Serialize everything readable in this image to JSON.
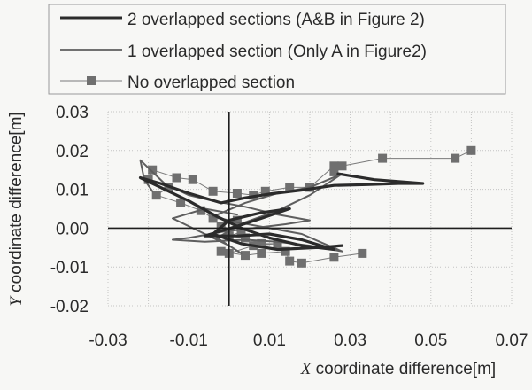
{
  "chart_data": {
    "type": "line",
    "title": "",
    "xlabel_var": "X",
    "xlabel": " coordinate difference[m]",
    "ylabel_var": "Y",
    "ylabel": " coordinate difference[m]",
    "xlim": [
      -0.03,
      0.07
    ],
    "ylim": [
      -0.02,
      0.03
    ],
    "x_ticks": [
      -0.03,
      -0.01,
      0.01,
      0.03,
      0.05,
      0.07
    ],
    "x_tick_labels": [
      "-0.03",
      "-0.01",
      "0.01",
      "0.03",
      "0.05",
      "0.07"
    ],
    "y_ticks": [
      -0.02,
      -0.01,
      0.0,
      0.01,
      0.02,
      0.03
    ],
    "y_tick_labels": [
      "-0.02",
      "-0.01",
      "0.00",
      "0.01",
      "0.02",
      "0.03"
    ],
    "grid": true,
    "legend_position": "top",
    "colors": {
      "series_two": "#2b2b2b",
      "series_one": "#5e5e5e",
      "series_none_line": "#7a7a7a",
      "series_none_marker": "#6f6f6f",
      "axis": "#1e1e1e",
      "grid": "#c4c4c4"
    },
    "series": [
      {
        "name": "2 overlapped sections (A&B in Figure 2)",
        "style": "thick-line",
        "points": [
          [
            0.027,
            0.014
          ],
          [
            0.03,
            0.0135
          ],
          [
            0.036,
            0.0125
          ],
          [
            0.042,
            0.012
          ],
          [
            0.048,
            0.0115
          ],
          [
            0.042,
            0.0115
          ],
          [
            0.034,
            0.0112
          ],
          [
            0.026,
            0.011
          ],
          [
            0.018,
            0.0098
          ],
          [
            0.01,
            0.0088
          ],
          [
            0.004,
            0.0078
          ],
          [
            -0.002,
            0.0065
          ],
          [
            -0.01,
            0.009
          ],
          [
            -0.017,
            0.0115
          ],
          [
            -0.022,
            0.013
          ],
          [
            -0.018,
            0.011
          ],
          [
            -0.01,
            0.007
          ],
          [
            -0.003,
            0.003
          ],
          [
            0.003,
            0.0
          ],
          [
            0.01,
            -0.0025
          ],
          [
            0.018,
            -0.0045
          ],
          [
            0.026,
            -0.0055
          ],
          [
            0.018,
            -0.003
          ],
          [
            0.01,
            -0.0015
          ],
          [
            0.002,
            -0.002
          ],
          [
            -0.006,
            -0.002
          ],
          [
            0.002,
            0.0005
          ],
          [
            0.008,
            0.0025
          ],
          [
            0.015,
            0.005
          ],
          [
            0.008,
            0.004
          ],
          [
            0.0,
            0.002
          ],
          [
            -0.004,
            -0.0015
          ],
          [
            0.003,
            -0.004
          ],
          [
            0.012,
            -0.0055
          ],
          [
            0.022,
            -0.005
          ],
          [
            0.028,
            -0.0045
          ]
        ]
      },
      {
        "name": "1 overlapped section (Only A in Figure2)",
        "style": "thin-line",
        "points": [
          [
            -0.019,
            0.0095
          ],
          [
            -0.021,
            0.0125
          ],
          [
            -0.022,
            0.0175
          ],
          [
            -0.016,
            0.0115
          ],
          [
            -0.01,
            0.0085
          ],
          [
            -0.004,
            0.007
          ],
          [
            0.004,
            0.0055
          ],
          [
            0.012,
            0.0035
          ],
          [
            0.02,
            0.002
          ],
          [
            0.014,
            0.001
          ],
          [
            0.006,
            0.0
          ],
          [
            -0.002,
            -0.001
          ],
          [
            -0.01,
            -0.0025
          ],
          [
            -0.014,
            -0.003
          ],
          [
            -0.006,
            -0.0035
          ],
          [
            0.004,
            -0.003
          ],
          [
            0.012,
            -0.0035
          ],
          [
            0.02,
            -0.0045
          ],
          [
            0.028,
            -0.006
          ],
          [
            0.018,
            -0.0015
          ],
          [
            0.01,
            0.0
          ],
          [
            0.002,
            0.0015
          ],
          [
            -0.004,
            0.003
          ],
          [
            0.004,
            0.0065
          ],
          [
            0.012,
            0.009
          ],
          [
            0.02,
            0.0105
          ],
          [
            0.028,
            0.014
          ],
          [
            0.02,
            0.0085
          ],
          [
            0.012,
            0.0045
          ],
          [
            0.004,
            0.0015
          ],
          [
            -0.003,
            -0.0025
          ],
          [
            0.003,
            -0.0065
          ],
          [
            0.0,
            -0.0045
          ],
          [
            -0.008,
            -0.0005
          ],
          [
            -0.014,
            0.0025
          ],
          [
            -0.006,
            0.005
          ],
          [
            0.002,
            0.0035
          ]
        ]
      },
      {
        "name": "No overlapped section",
        "style": "thin-line-square-markers",
        "points": [
          [
            0.06,
            0.02
          ],
          [
            0.056,
            0.018
          ],
          [
            0.038,
            0.018
          ],
          [
            0.028,
            0.016
          ],
          [
            0.026,
            0.0145
          ],
          [
            0.026,
            0.016
          ],
          [
            0.02,
            0.0105
          ],
          [
            0.015,
            0.0105
          ],
          [
            0.009,
            0.0095
          ],
          [
            0.006,
            0.0085
          ],
          [
            0.002,
            0.009
          ],
          [
            -0.004,
            0.0095
          ],
          [
            -0.009,
            0.0125
          ],
          [
            -0.013,
            0.013
          ],
          [
            -0.019,
            0.015
          ],
          [
            -0.02,
            0.0125
          ],
          [
            -0.015,
            0.0105
          ],
          [
            -0.018,
            0.0085
          ],
          [
            -0.012,
            0.0065
          ],
          [
            -0.007,
            0.0045
          ],
          [
            -0.004,
            0.0025
          ],
          [
            0.002,
            0.002
          ],
          [
            -0.002,
            0.0005
          ],
          [
            0.003,
            -0.001
          ],
          [
            0.0,
            -0.002
          ],
          [
            0.004,
            -0.0025
          ],
          [
            0.008,
            -0.004
          ],
          [
            0.012,
            -0.004
          ],
          [
            0.006,
            -0.0045
          ],
          [
            0.0,
            -0.0065
          ],
          [
            -0.002,
            -0.006
          ],
          [
            0.004,
            -0.007
          ],
          [
            0.008,
            -0.0065
          ],
          [
            0.014,
            -0.006
          ],
          [
            0.015,
            -0.0085
          ],
          [
            0.018,
            -0.009
          ],
          [
            0.026,
            -0.0075
          ],
          [
            0.033,
            -0.0065
          ]
        ]
      }
    ]
  }
}
